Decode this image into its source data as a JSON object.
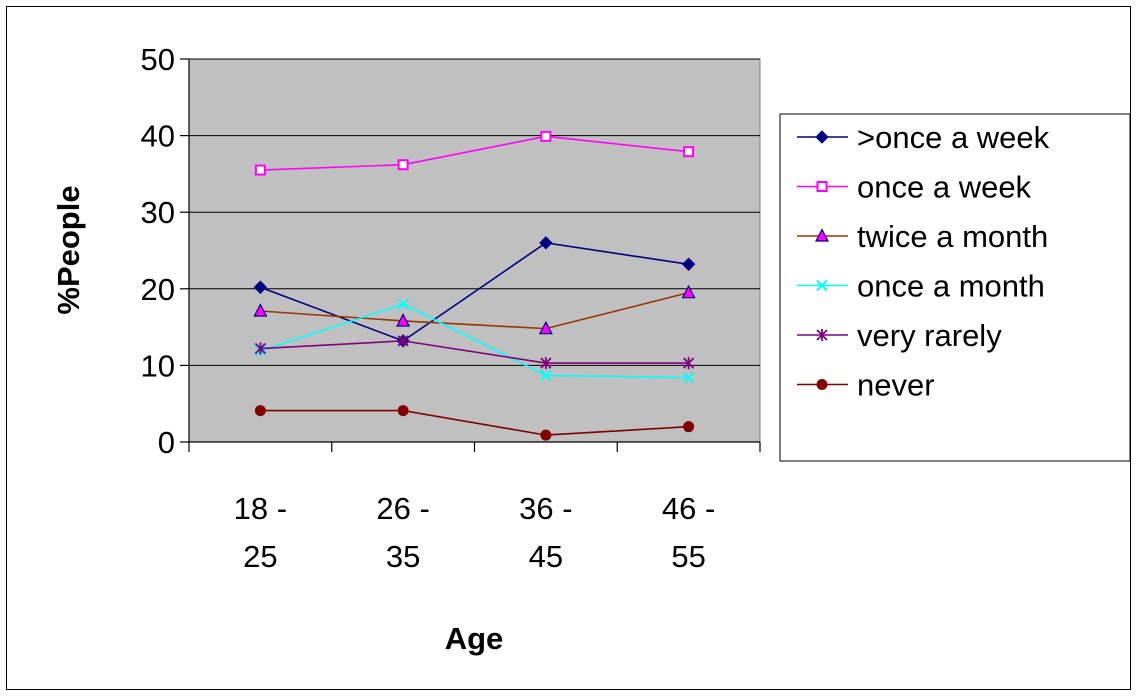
{
  "chart_data": {
    "type": "line",
    "title": "",
    "xlabel": "Age",
    "ylabel": "%People",
    "categories": [
      [
        "18 -",
        "25"
      ],
      [
        "26 -",
        "35"
      ],
      [
        "36 -",
        "45"
      ],
      [
        "46 -",
        "55"
      ]
    ],
    "ylim": [
      0,
      50
    ],
    "yticks": [
      "0",
      "10",
      "20",
      "30",
      "40",
      "50"
    ],
    "grid": true,
    "plot_background": "#c0c0c0",
    "legend_position": "right",
    "series": [
      {
        "name": ">once a week",
        "values": [
          20.2,
          13.2,
          26.0,
          23.2
        ],
        "color": "#000080",
        "marker": "diamond"
      },
      {
        "name": "once a week",
        "values": [
          35.5,
          36.2,
          39.9,
          37.9
        ],
        "color": "#ff00ff",
        "marker": "square"
      },
      {
        "name": "twice a month",
        "values": [
          17.1,
          15.8,
          14.8,
          19.5
        ],
        "color": "#993300",
        "marker": "triangle"
      },
      {
        "name": "once a month",
        "values": [
          11.9,
          18.0,
          8.7,
          8.4
        ],
        "color": "#00ffff",
        "marker": "x"
      },
      {
        "name": "very rarely",
        "values": [
          12.2,
          13.2,
          10.3,
          10.3
        ],
        "color": "#800080",
        "marker": "star"
      },
      {
        "name": "never",
        "values": [
          4.1,
          4.1,
          0.9,
          2.0
        ],
        "color": "#800000",
        "marker": "circle"
      }
    ]
  }
}
